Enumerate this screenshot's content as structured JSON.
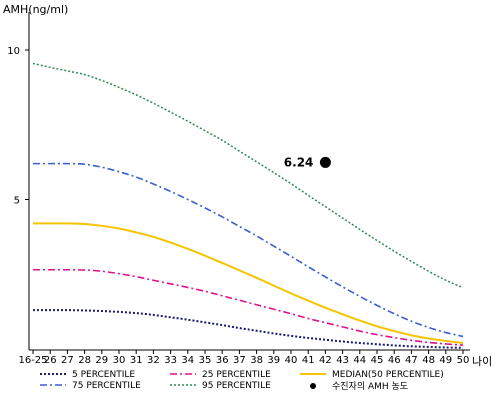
{
  "chart_data": {
    "type": "line",
    "ylabel": "AMH(ng/ml)",
    "xlabel": "나이",
    "x": [
      "16-25",
      "26",
      "27",
      "28",
      "29",
      "30",
      "31",
      "32",
      "33",
      "34",
      "35",
      "36",
      "37",
      "38",
      "39",
      "40",
      "41",
      "42",
      "43",
      "44",
      "45",
      "46",
      "47",
      "48",
      "49",
      "50"
    ],
    "ylim": [
      0,
      11
    ],
    "yticks": [
      "5",
      "10"
    ],
    "ytick_values": [
      5,
      10
    ],
    "series": [
      {
        "name": "5 PERCENTILE",
        "color": "#1a1a6e",
        "dash": "2,2",
        "width": 2,
        "values": [
          1.3,
          1.3,
          1.3,
          1.29,
          1.27,
          1.24,
          1.2,
          1.14,
          1.06,
          0.98,
          0.89,
          0.8,
          0.7,
          0.61,
          0.52,
          0.44,
          0.37,
          0.31,
          0.25,
          0.2,
          0.16,
          0.12,
          0.09,
          0.07,
          0.05,
          0.04
        ]
      },
      {
        "name": "25 PERCENTILE",
        "color": "#e0128a",
        "dash": "7,3,2,3",
        "width": 1.6,
        "values": [
          2.65,
          2.65,
          2.65,
          2.64,
          2.6,
          2.52,
          2.42,
          2.3,
          2.18,
          2.06,
          1.93,
          1.78,
          1.63,
          1.48,
          1.33,
          1.18,
          1.02,
          0.88,
          0.74,
          0.6,
          0.48,
          0.38,
          0.29,
          0.22,
          0.17,
          0.13
        ]
      },
      {
        "name": "MEDIAN(50 PERCENTILE)",
        "color": "#f5c400",
        "dash": "",
        "width": 2,
        "values": [
          4.2,
          4.2,
          4.2,
          4.18,
          4.12,
          4.03,
          3.9,
          3.75,
          3.56,
          3.35,
          3.12,
          2.88,
          2.63,
          2.38,
          2.12,
          1.86,
          1.62,
          1.38,
          1.16,
          0.95,
          0.76,
          0.6,
          0.46,
          0.35,
          0.27,
          0.2
        ]
      },
      {
        "name": "75 PERCENTILE",
        "color": "#3a5fd0",
        "dash": "7,3,2,3",
        "width": 1.6,
        "values": [
          6.2,
          6.2,
          6.2,
          6.18,
          6.08,
          5.93,
          5.75,
          5.52,
          5.27,
          5.0,
          4.72,
          4.42,
          4.1,
          3.78,
          3.44,
          3.1,
          2.75,
          2.41,
          2.08,
          1.76,
          1.46,
          1.18,
          0.93,
          0.72,
          0.55,
          0.42
        ]
      },
      {
        "name": "95 PERCENTILE",
        "color": "#2f8a52",
        "dash": "2,2",
        "width": 1.5,
        "values": [
          9.55,
          9.42,
          9.3,
          9.18,
          8.98,
          8.75,
          8.5,
          8.22,
          7.92,
          7.62,
          7.3,
          6.98,
          6.62,
          6.26,
          5.9,
          5.53,
          5.14,
          4.76,
          4.38,
          4.0,
          3.63,
          3.27,
          2.93,
          2.6,
          2.3,
          2.05
        ]
      }
    ],
    "marker": {
      "name": "수진자의 AMH 농도",
      "x": "42",
      "y": 6.24,
      "label": "6.24",
      "color": "#000000"
    },
    "legend_position": "bottom",
    "grid": false
  }
}
